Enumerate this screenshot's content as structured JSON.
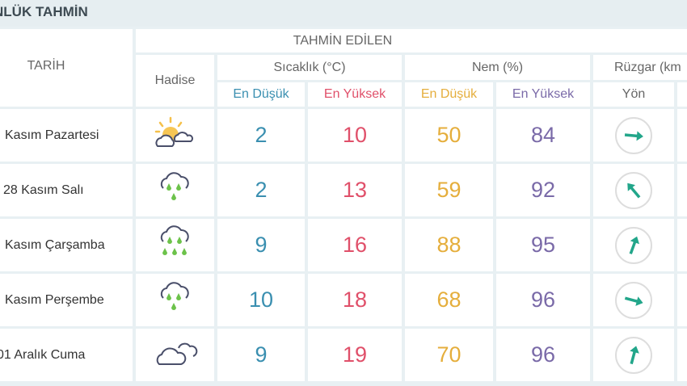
{
  "title": "NLÜK TAHMİN",
  "header": {
    "tarih": "TARİH",
    "tahmin": "TAHMİN EDİLEN",
    "hadise": "Hadise",
    "sicaklik": "Sıcaklık (°C)",
    "nem": "Nem (%)",
    "ruzgar": "Rüzgar (km",
    "yon": "Yön",
    "en_dusuk": "En Düşük",
    "en_yuksek": "En Yüksek"
  },
  "colors": {
    "temp_min": "#3a8fb0",
    "temp_max": "#e0506a",
    "hum_min": "#e5ae3c",
    "hum_max": "#7a6aa8",
    "arrow": "#22a68a"
  },
  "rows": [
    {
      "date": "Kasım Pazartesi",
      "icon": "partly-cloudy-icon",
      "tmin": "2",
      "tmax": "10",
      "hmin": "50",
      "hmax": "84",
      "wind_dir_deg": 95
    },
    {
      "date": "28 Kasım Salı",
      "icon": "rain-icon",
      "tmin": "2",
      "tmax": "13",
      "hmin": "59",
      "hmax": "92",
      "wind_dir_deg": -40
    },
    {
      "date": "Kasım Çarşamba",
      "icon": "heavy-rain-icon",
      "tmin": "9",
      "tmax": "16",
      "hmin": "88",
      "hmax": "95",
      "wind_dir_deg": 20
    },
    {
      "date": "Kasım Perşembe",
      "icon": "rain-icon",
      "tmin": "10",
      "tmax": "18",
      "hmin": "68",
      "hmax": "96",
      "wind_dir_deg": 105
    },
    {
      "date": "01 Aralık Cuma",
      "icon": "cloudy-icon",
      "tmin": "9",
      "tmax": "19",
      "hmin": "70",
      "hmax": "96",
      "wind_dir_deg": 15
    }
  ]
}
